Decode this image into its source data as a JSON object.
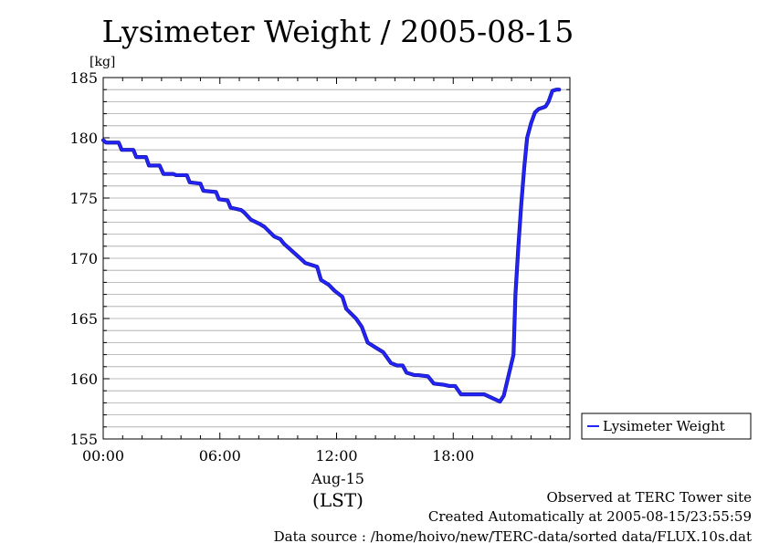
{
  "chart_data": {
    "type": "line",
    "title": "Lysimeter Weight / 2005-08-15",
    "ylabel": "[kg]",
    "xlabel": "(LST)",
    "date_label": "Aug-15",
    "ylim": [
      155,
      185
    ],
    "yticks": [
      "155",
      "160",
      "165",
      "170",
      "175",
      "180",
      "185"
    ],
    "xlim_hours": [
      0,
      24
    ],
    "xticks": [
      {
        "hour": 0,
        "label": "00:00"
      },
      {
        "hour": 6,
        "label": "06:00"
      },
      {
        "hour": 12,
        "label": "12:00"
      },
      {
        "hour": 18,
        "label": "18:00"
      }
    ],
    "grid": true,
    "legend_position": "right",
    "series": [
      {
        "name": "Lysimeter Weight",
        "color": "#2323ff",
        "x": [
          0,
          0.15,
          0.8,
          0.95,
          1.55,
          1.7,
          2.2,
          2.35,
          2.9,
          3.1,
          3.6,
          3.75,
          4.3,
          4.45,
          5.0,
          5.15,
          5.8,
          5.95,
          6.4,
          6.55,
          7.1,
          7.25,
          7.6,
          8.1,
          8.3,
          8.8,
          9.1,
          9.3,
          10.2,
          10.4,
          11.0,
          11.2,
          11.6,
          11.9,
          12.3,
          12.5,
          13.0,
          13.3,
          13.6,
          14.0,
          14.2,
          14.4,
          14.8,
          15.1,
          15.4,
          15.6,
          16.0,
          16.2,
          16.7,
          17.0,
          17.5,
          17.8,
          18.1,
          18.4,
          19.3,
          19.6,
          20.4,
          20.6,
          21.1,
          21.2,
          21.35,
          21.5,
          21.65,
          21.8,
          22.0,
          22.2,
          22.4,
          22.6,
          22.75,
          22.9,
          23.1,
          23.3,
          23.45
        ],
        "y": [
          179.8,
          179.6,
          179.6,
          179.0,
          179.0,
          178.4,
          178.4,
          177.7,
          177.7,
          177.0,
          177.0,
          176.9,
          176.9,
          176.3,
          176.2,
          175.6,
          175.5,
          174.9,
          174.8,
          174.2,
          174.0,
          173.8,
          173.2,
          172.8,
          172.6,
          171.8,
          171.6,
          171.2,
          169.9,
          169.6,
          169.3,
          168.2,
          167.8,
          167.3,
          166.8,
          165.8,
          165.0,
          164.3,
          163.0,
          162.6,
          162.4,
          162.2,
          161.3,
          161.1,
          161.1,
          160.5,
          160.3,
          160.3,
          160.2,
          159.6,
          159.5,
          159.4,
          159.4,
          158.7,
          158.7,
          158.7,
          158.1,
          158.6,
          162.0,
          167.0,
          171.0,
          174.5,
          177.5,
          180.0,
          181.2,
          182.1,
          182.4,
          182.5,
          182.6,
          183.0,
          183.9,
          184.0,
          184.0
        ]
      }
    ]
  },
  "footer": {
    "line1": "Observed at TERC Tower site",
    "line2": "Created Automatically at 2005-08-15/23:55:59",
    "line3": "Data source : /home/hoivo/new/TERC-data/sorted  data/FLUX.10s.dat"
  }
}
